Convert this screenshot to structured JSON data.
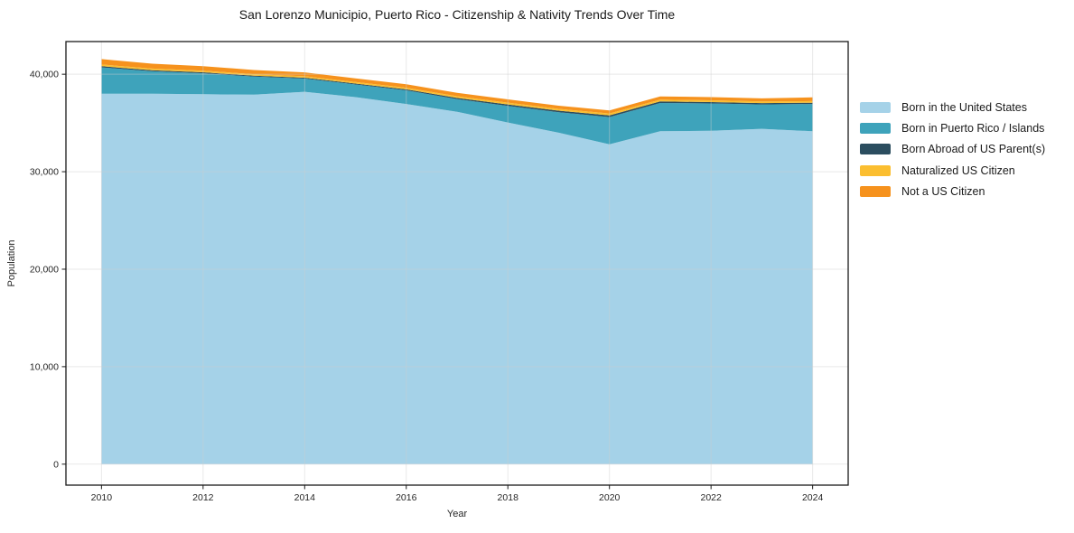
{
  "chart": {
    "title": "San Lorenzo Municipio, Puerto Rico - Citizenship & Nativity Trends Over Time"
  },
  "chart_data": {
    "type": "area",
    "stacked": true,
    "title": "San Lorenzo Municipio, Puerto Rico - Citizenship & Nativity Trends Over Time",
    "xlabel": "Year",
    "ylabel": "Population",
    "x": [
      2010,
      2011,
      2012,
      2013,
      2014,
      2015,
      2016,
      2017,
      2018,
      2019,
      2020,
      2021,
      2022,
      2023,
      2024
    ],
    "series": [
      {
        "name": "Born in the United States",
        "color": "#A5D2E8",
        "values": [
          38000,
          38000,
          37950,
          37900,
          38200,
          37650,
          36950,
          36150,
          35050,
          34000,
          32800,
          34150,
          34200,
          34400,
          34150
        ]
      },
      {
        "name": "Born in Puerto Rico / Islands",
        "color": "#3EA3BB",
        "values": [
          2700,
          2300,
          2150,
          1850,
          1350,
          1300,
          1400,
          1300,
          1700,
          2100,
          2800,
          2900,
          2800,
          2500,
          2800
        ]
      },
      {
        "name": "Born Abroad of US Parent(s)",
        "color": "#2B4D5F",
        "values": [
          120,
          110,
          100,
          95,
          90,
          95,
          100,
          120,
          150,
          160,
          170,
          155,
          145,
          135,
          130
        ]
      },
      {
        "name": "Naturalized US Citizen",
        "color": "#FBBE30",
        "values": [
          180,
          170,
          165,
          160,
          150,
          155,
          165,
          175,
          185,
          190,
          200,
          190,
          185,
          175,
          160
        ]
      },
      {
        "name": "Not a US Citizen",
        "color": "#F6921D",
        "values": [
          550,
          500,
          460,
          430,
          400,
          380,
          360,
          340,
          330,
          320,
          310,
          330,
          320,
          310,
          380
        ]
      }
    ],
    "xlim": [
      2009.3,
      2024.7
    ],
    "ylim": [
      -2150,
      43350
    ],
    "x_ticks": [
      {
        "v": 2010,
        "label": "2010"
      },
      {
        "v": 2012,
        "label": "2012"
      },
      {
        "v": 2014,
        "label": "2014"
      },
      {
        "v": 2016,
        "label": "2016"
      },
      {
        "v": 2018,
        "label": "2018"
      },
      {
        "v": 2020,
        "label": "2020"
      },
      {
        "v": 2022,
        "label": "2022"
      },
      {
        "v": 2024,
        "label": "2024"
      }
    ],
    "y_ticks": [
      {
        "v": 0,
        "label": "0"
      },
      {
        "v": 10000,
        "label": "10,000"
      },
      {
        "v": 20000,
        "label": "20,000"
      },
      {
        "v": 30000,
        "label": "30,000"
      },
      {
        "v": 40000,
        "label": "40,000"
      }
    ],
    "grid": true,
    "legend_position": "right"
  }
}
